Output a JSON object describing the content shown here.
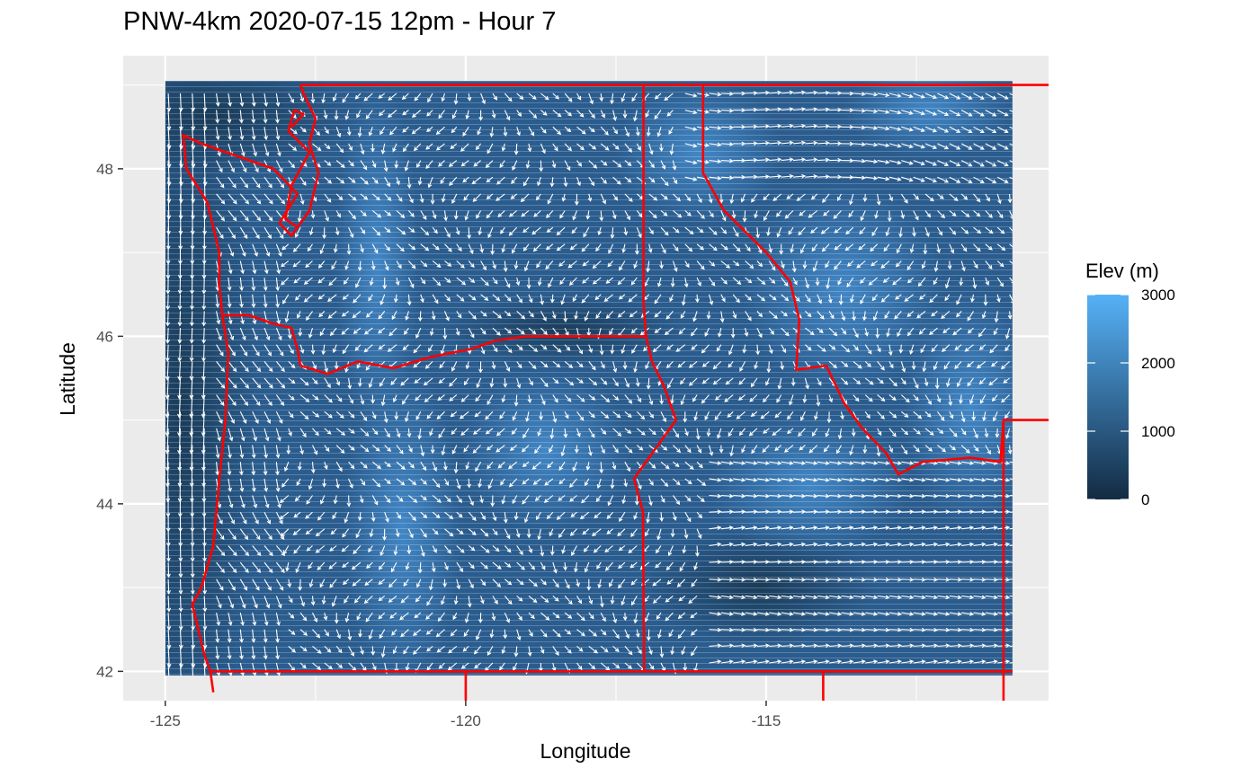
{
  "title": "PNW-4km 2020-07-15 12pm - Hour 7",
  "chart_data": {
    "type": "heatmap",
    "title": "PNW-4km 2020-07-15 12pm - Hour 7",
    "xlabel": "Longitude",
    "ylabel": "Latitude",
    "xlim": [
      -125.7,
      -110.3
    ],
    "ylim": [
      41.65,
      49.35
    ],
    "x_ticks": [
      -125,
      -120,
      -115
    ],
    "y_ticks": [
      42,
      44,
      46,
      48
    ],
    "x_tick_labels": [
      "-125",
      "-120",
      "-115"
    ],
    "y_tick_labels": [
      "42",
      "44",
      "46",
      "48"
    ],
    "grid": true,
    "raster_extent": {
      "lon": [
        -125.0,
        -110.9
      ],
      "lat": [
        41.95,
        49.05
      ]
    },
    "fill": {
      "variable": "Elev (m)",
      "limits": [
        0,
        3000
      ],
      "breaks": [
        0,
        1000,
        2000,
        3000
      ],
      "break_labels": [
        "0",
        "1000",
        "2000",
        "3000"
      ],
      "low_color": "#132B43",
      "high_color": "#56B1F7"
    },
    "legend": {
      "title": "Elev (m)",
      "position": "right"
    },
    "overlay": {
      "type": "wind-vectors",
      "color": "#ffffff"
    },
    "boundaries": {
      "color": "#ff0000",
      "layer": "state-borders"
    }
  }
}
